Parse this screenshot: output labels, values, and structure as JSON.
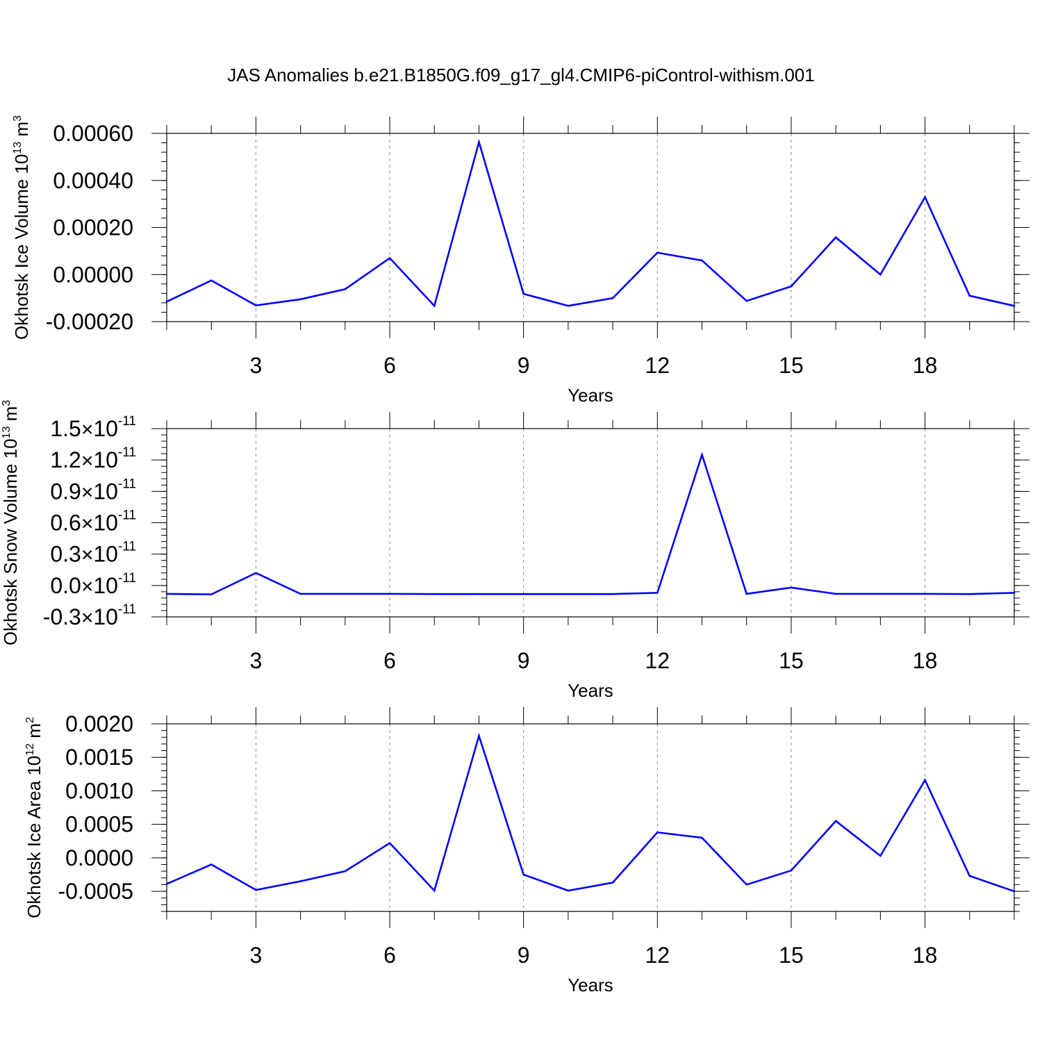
{
  "figure_title": "JAS Anomalies b.e21.B1850G.f09_g17_gl4.CMIP6-piControl-withism.001",
  "chart_data": [
    {
      "type": "line",
      "id": "ice-volume",
      "title": "JAS Anomalies b.e21.B1850G.f09_g17_gl4.CMIP6-piControl-withism.001",
      "ylabel": {
        "base": "Okhotsk Ice Volume 10",
        "exp": "13",
        "unit": " m",
        "unit_exp": "3"
      },
      "xlabel": "Years",
      "xlim": [
        1,
        20
      ],
      "x_ticks": [
        3,
        6,
        9,
        12,
        15,
        18
      ],
      "x_tick_labels": [
        "3",
        "6",
        "9",
        "12",
        "15",
        "18"
      ],
      "x_minor_ticks": [
        1,
        2,
        4,
        5,
        7,
        8,
        10,
        11,
        13,
        14,
        16,
        17,
        19,
        20
      ],
      "ylim": [
        -0.0002,
        0.0006
      ],
      "y_ticks": [
        -0.0002,
        0.0,
        0.0002,
        0.0004,
        0.0006
      ],
      "y_tick_labels": [
        "-0.00020",
        "0.00000",
        "0.00020",
        "0.00040",
        "0.00060"
      ],
      "y_minor_step": 4e-05,
      "line_color": "#0000ff",
      "x": [
        1,
        2,
        3,
        4,
        5,
        6,
        7,
        8,
        9,
        10,
        11,
        12,
        13,
        14,
        15,
        16,
        17,
        18,
        19,
        20
      ],
      "values": [
        -0.000115,
        -2.5e-05,
        -0.000131,
        -0.000105,
        -6.2e-05,
        7e-05,
        -0.000133,
        0.000563,
        -8.2e-05,
        -0.000133,
        -0.0001,
        9.3e-05,
        6e-05,
        -0.000112,
        -5e-05,
        0.000158,
        0.0,
        0.000329,
        -9e-05,
        -0.000133
      ]
    },
    {
      "type": "line",
      "id": "snow-volume",
      "ylabel": {
        "base": "Okhotsk Snow Volume 10",
        "exp": "13",
        "unit": " m",
        "unit_exp": "3"
      },
      "xlabel": "Years",
      "xlim": [
        1,
        20
      ],
      "x_ticks": [
        3,
        6,
        9,
        12,
        15,
        18
      ],
      "x_tick_labels": [
        "3",
        "6",
        "9",
        "12",
        "15",
        "18"
      ],
      "x_minor_ticks": [
        1,
        2,
        4,
        5,
        7,
        8,
        10,
        11,
        13,
        14,
        16,
        17,
        19,
        20
      ],
      "ylim": [
        -0.3,
        1.5
      ],
      "y_scale_label": "10",
      "y_scale_exp": "-11",
      "y_ticks": [
        -0.3,
        0.0,
        0.3,
        0.6,
        0.9,
        1.2,
        1.5
      ],
      "y_tick_labels": [
        "-0.3",
        "0.0",
        "0.3",
        "0.6",
        "0.9",
        "1.2",
        "1.5"
      ],
      "y_minor_step": 0.06,
      "line_color": "#0000ff",
      "x": [
        1,
        2,
        3,
        4,
        5,
        6,
        7,
        8,
        9,
        10,
        11,
        12,
        13,
        14,
        15,
        16,
        17,
        18,
        19,
        20
      ],
      "values": [
        -0.08,
        -0.085,
        0.12,
        -0.08,
        -0.08,
        -0.08,
        -0.082,
        -0.082,
        -0.082,
        -0.082,
        -0.082,
        -0.07,
        1.25,
        -0.08,
        -0.02,
        -0.08,
        -0.08,
        -0.08,
        -0.082,
        -0.07
      ]
    },
    {
      "type": "line",
      "id": "ice-area",
      "ylabel": {
        "base": "Okhotsk Ice Area 10",
        "exp": "12",
        "unit": " m",
        "unit_exp": "2"
      },
      "xlabel": "Years",
      "xlim": [
        1,
        20
      ],
      "x_ticks": [
        3,
        6,
        9,
        12,
        15,
        18
      ],
      "x_tick_labels": [
        "3",
        "6",
        "9",
        "12",
        "15",
        "18"
      ],
      "x_minor_ticks": [
        1,
        2,
        4,
        5,
        7,
        8,
        10,
        11,
        13,
        14,
        16,
        17,
        19,
        20
      ],
      "ylim": [
        -0.0008,
        0.002
      ],
      "y_ticks": [
        -0.0005,
        0.0,
        0.0005,
        0.001,
        0.0015,
        0.002
      ],
      "y_tick_labels": [
        "-0.0005",
        "0.0000",
        "0.0005",
        "0.0010",
        "0.0015",
        "0.0020"
      ],
      "y_minor_step": 0.0001,
      "line_color": "#0000ff",
      "x": [
        1,
        2,
        3,
        4,
        5,
        6,
        7,
        8,
        9,
        10,
        11,
        12,
        13,
        14,
        15,
        16,
        17,
        18,
        19,
        20
      ],
      "values": [
        -0.00039,
        -0.0001,
        -0.00048,
        -0.00035,
        -0.0002,
        0.00022,
        -0.00049,
        0.00182,
        -0.00025,
        -0.00049,
        -0.00037,
        0.00038,
        0.0003,
        -0.0004,
        -0.00019,
        0.00055,
        3e-05,
        0.00116,
        -0.00027,
        -0.0005
      ]
    }
  ]
}
